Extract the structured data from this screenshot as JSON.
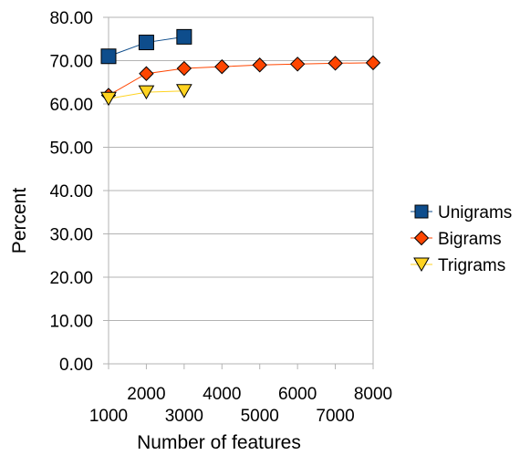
{
  "chart_data": {
    "type": "line",
    "xlabel": "Number of features",
    "ylabel": "Percent",
    "ylim": [
      0,
      80
    ],
    "yticks": [
      "0.00",
      "10.00",
      "20.00",
      "30.00",
      "40.00",
      "50.00",
      "60.00",
      "70.00",
      "80.00"
    ],
    "xticks": [
      "1000",
      "2000",
      "3000",
      "4000",
      "5000",
      "6000",
      "7000",
      "8000"
    ],
    "grid": true,
    "legend_position": "right",
    "series": [
      {
        "name": "Unigrams",
        "color": "#0e4d8c",
        "marker": "square",
        "x": [
          1000,
          2000,
          3000
        ],
        "y": [
          71.0,
          74.2,
          75.5
        ]
      },
      {
        "name": "Bigrams",
        "color": "#ff4500",
        "marker": "diamond",
        "x": [
          1000,
          2000,
          3000,
          4000,
          5000,
          6000,
          7000,
          8000
        ],
        "y": [
          62.0,
          67.0,
          68.2,
          68.6,
          69.0,
          69.2,
          69.4,
          69.5
        ]
      },
      {
        "name": "Trigrams",
        "color": "#ffd320",
        "marker": "triangle-down",
        "x": [
          1000,
          2000,
          3000
        ],
        "y": [
          61.2,
          62.7,
          63.0
        ]
      }
    ]
  }
}
